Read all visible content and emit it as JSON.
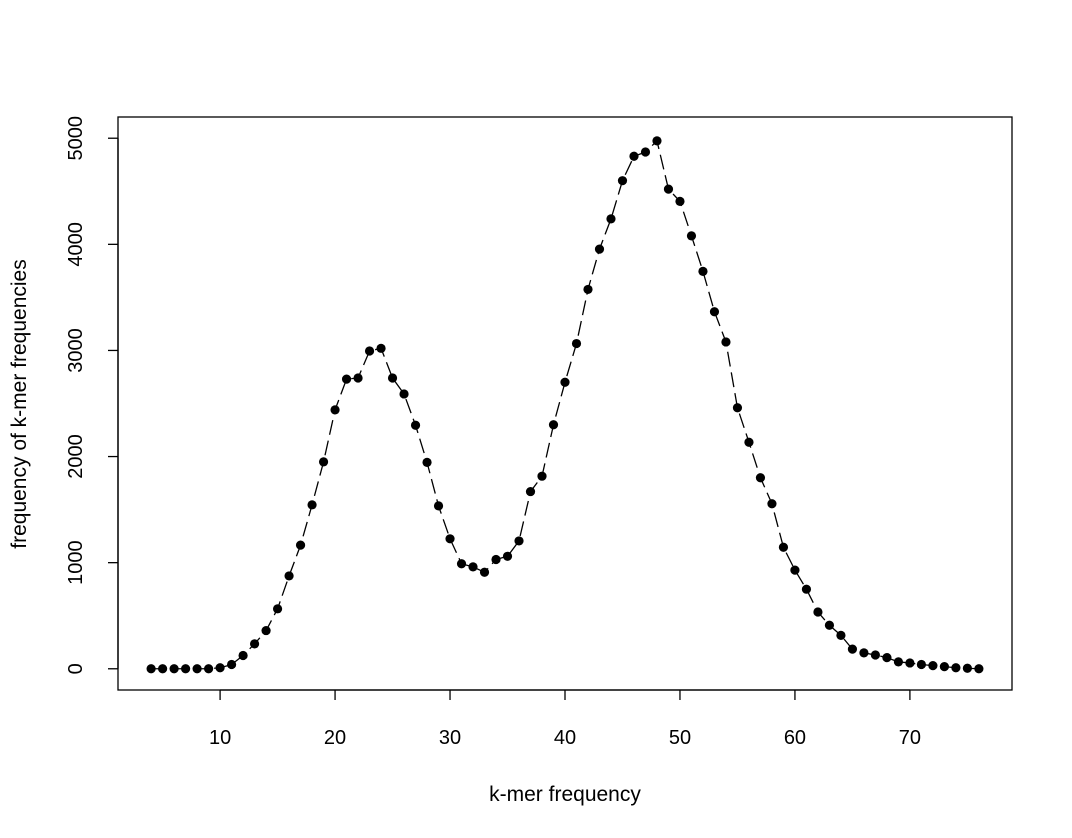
{
  "chart_data": {
    "type": "line",
    "title": "",
    "xlabel": "k-mer frequency",
    "ylabel": "frequency of k-mer frequencies",
    "xlim": [
      1.12,
      78.88
    ],
    "ylim": [
      -200,
      5200
    ],
    "x_ticks": [
      10,
      20,
      30,
      40,
      50,
      60,
      70
    ],
    "y_ticks": [
      0,
      1000,
      2000,
      3000,
      4000,
      5000
    ],
    "grid": false,
    "legend": "none",
    "line_style": "dashed",
    "marker": "filled-circle",
    "colors": {
      "series": "#000000",
      "frame": "#000000",
      "background": "#ffffff"
    },
    "series": [
      {
        "x": [
          4,
          5,
          6,
          7,
          8,
          9,
          10,
          11,
          12,
          13,
          14,
          15,
          16,
          17,
          18,
          19,
          20,
          21,
          22,
          23,
          24,
          25,
          26,
          27,
          28,
          29,
          30,
          31,
          32,
          33,
          34,
          35,
          36,
          37,
          38,
          39,
          40,
          41,
          42,
          43,
          44,
          45,
          46,
          47,
          48,
          49,
          50,
          51,
          52,
          53,
          54,
          55,
          56,
          57,
          58,
          59,
          60,
          61,
          62,
          63,
          64,
          65,
          66,
          67,
          68,
          69,
          70,
          71,
          72,
          73,
          74,
          75,
          76
        ],
        "y": [
          0,
          0,
          0,
          0,
          0,
          0,
          10,
          40,
          125,
          235,
          360,
          565,
          875,
          1165,
          1545,
          1950,
          2440,
          2730,
          2740,
          2995,
          3020,
          2740,
          2590,
          2295,
          1945,
          1535,
          1225,
          990,
          960,
          910,
          1030,
          1060,
          1205,
          1670,
          1815,
          2300,
          2700,
          3065,
          3575,
          3955,
          4240,
          4600,
          4830,
          4870,
          4975,
          4520,
          4405,
          4080,
          3745,
          3365,
          3080,
          2460,
          2135,
          1800,
          1555,
          1145,
          930,
          750,
          535,
          410,
          315,
          185,
          150,
          130,
          105,
          65,
          55,
          40,
          30,
          20,
          10,
          5,
          0
        ]
      }
    ]
  }
}
